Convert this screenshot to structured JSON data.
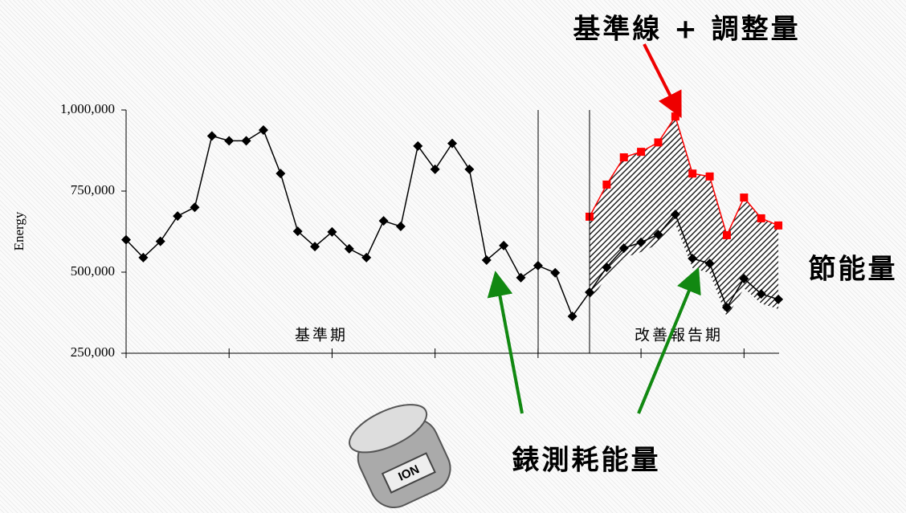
{
  "chart_data": {
    "type": "line",
    "ylabel": "Energy",
    "annotations": {
      "baseline_adjusted": "基準線 + 調整量",
      "savings": "節能量",
      "metered": "錶測耗能量",
      "baseline_period": "基準期",
      "reporting_period": "改善報告期",
      "meter_brand": "ION"
    },
    "categories": [
      null,
      null,
      null,
      null,
      null,
      null,
      null,
      null,
      null,
      null,
      null,
      null,
      null,
      null,
      null,
      null,
      null,
      null,
      null,
      null,
      null,
      null,
      null,
      null,
      null,
      null,
      null,
      null,
      null,
      null,
      null,
      null,
      null,
      null,
      null,
      null,
      null,
      null,
      null
    ],
    "ylim": [
      250000,
      1000000
    ],
    "yticks": [
      {
        "value": 250000,
        "label": "250,000"
      },
      {
        "value": 500000,
        "label": "500,000"
      },
      {
        "value": 750000,
        "label": "750,000"
      },
      {
        "value": 1000000,
        "label": "1,000,000"
      }
    ],
    "series": [
      {
        "color": "#000000",
        "marker": "diamond",
        "values": [
          600000,
          545000,
          595000,
          673000,
          700000,
          920000,
          905000,
          905000,
          938000,
          804000,
          626000,
          579000,
          624000,
          572000,
          545000,
          658000,
          641000,
          889000,
          817000,
          897000,
          817000,
          537000,
          582000,
          483000,
          520000,
          498000,
          364000,
          438000,
          515000,
          574000,
          592000,
          616000,
          678000,
          542000,
          527000,
          391000,
          480000,
          433000,
          416000
        ]
      },
      {
        "color": "#ff0000",
        "marker": "square",
        "values": [
          null,
          null,
          null,
          null,
          null,
          null,
          null,
          null,
          null,
          null,
          null,
          null,
          null,
          null,
          null,
          null,
          null,
          null,
          null,
          null,
          null,
          null,
          null,
          null,
          null,
          null,
          null,
          671000,
          770000,
          854000,
          871000,
          900000,
          980000,
          804000,
          795000,
          614000,
          730000,
          666000,
          644000
        ]
      }
    ]
  }
}
